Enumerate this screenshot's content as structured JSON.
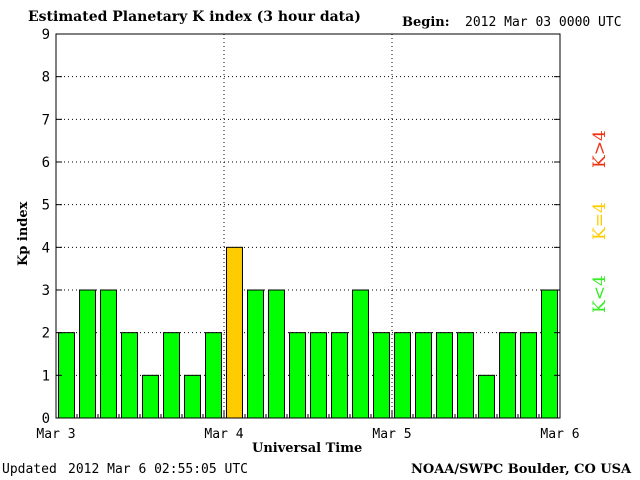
{
  "header": {
    "title": "Estimated Planetary K index (3 hour data)",
    "begin_label": "Begin:",
    "begin_value": "2012 Mar 03 0000 UTC"
  },
  "footer": {
    "updated_label": "Updated",
    "updated_value": "2012 Mar  6 02:55:05 UTC",
    "source": "NOAA/SWPC Boulder, CO USA"
  },
  "legend": {
    "below": {
      "text": "K<4",
      "color": "#33ee22"
    },
    "equal": {
      "text": "K=4",
      "color": "#ffcc00"
    },
    "above": {
      "text": "K>4",
      "color": "#ee3311"
    }
  },
  "chart_data": {
    "type": "bar",
    "title": "Estimated Planetary K index (3 hour data)",
    "xlabel": "Universal Time",
    "ylabel": "Kp index",
    "ylim": [
      0,
      9
    ],
    "yticks": [
      "0",
      "1",
      "2",
      "3",
      "4",
      "5",
      "6",
      "7",
      "8",
      "9"
    ],
    "xticks": [
      "Mar 3",
      "Mar 4",
      "Mar 5",
      "Mar 6"
    ],
    "grid": true,
    "colors": {
      "below4": "#00ff00",
      "eq4": "#ffcc00",
      "above4": "#ff0000",
      "bar_border": "#000000"
    },
    "values": [
      2,
      3,
      3,
      2,
      1,
      2,
      1,
      2,
      4,
      3,
      3,
      2,
      2,
      2,
      3,
      2,
      2,
      2,
      2,
      2,
      1,
      2,
      2,
      3
    ]
  }
}
